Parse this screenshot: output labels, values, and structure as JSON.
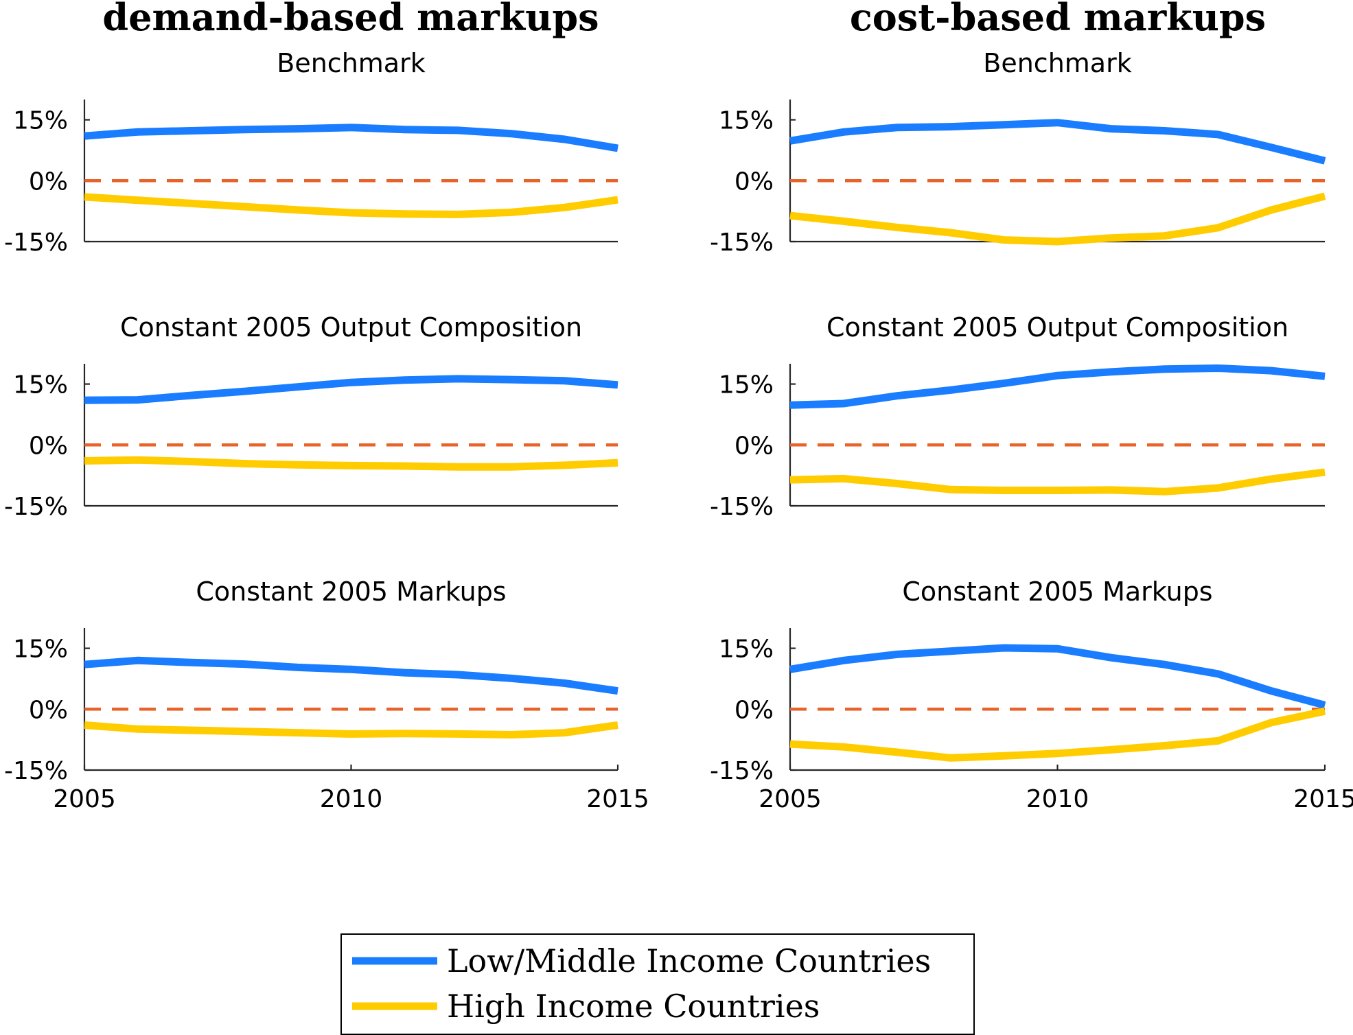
{
  "colors": {
    "low_middle": "#1a7cff",
    "high": "#ffcc00",
    "zero": "#e8632a"
  },
  "column_titles": [
    "demand-based markups",
    "cost-based markups"
  ],
  "legend": {
    "entries": [
      {
        "label": "Low/Middle Income Countries",
        "color": "#1a7cff"
      },
      {
        "label": "High Income Countries",
        "color": "#ffcc00"
      }
    ]
  },
  "chart_data": [
    {
      "type": "line",
      "column": "demand-based markups",
      "title": "Benchmark",
      "x": [
        2005,
        2006,
        2007,
        2008,
        2009,
        2010,
        2011,
        2012,
        2013,
        2014,
        2015
      ],
      "xlim": [
        2005,
        2015
      ],
      "xticks": [],
      "ylim": [
        -15,
        20
      ],
      "yticks": [
        15,
        0,
        -15
      ],
      "ytick_labels": [
        "15%",
        "0%",
        "-15%"
      ],
      "reference_line": 0,
      "series": [
        {
          "name": "Low/Middle Income Countries",
          "values": [
            11,
            12,
            12.3,
            12.6,
            12.8,
            13.1,
            12.6,
            12.4,
            11.6,
            10.2,
            8.0
          ]
        },
        {
          "name": "High Income Countries",
          "values": [
            -4,
            -4.8,
            -5.6,
            -6.4,
            -7.2,
            -7.9,
            -8.2,
            -8.3,
            -7.8,
            -6.6,
            -4.7
          ]
        }
      ]
    },
    {
      "type": "line",
      "column": "cost-based markups",
      "title": "Benchmark",
      "x": [
        2005,
        2006,
        2007,
        2008,
        2009,
        2010,
        2011,
        2012,
        2013,
        2014,
        2015
      ],
      "xlim": [
        2005,
        2015
      ],
      "xticks": [],
      "ylim": [
        -15,
        20
      ],
      "yticks": [
        15,
        0,
        -15
      ],
      "ytick_labels": [
        "15%",
        "0%",
        "-15%"
      ],
      "reference_line": 0,
      "series": [
        {
          "name": "Low/Middle Income Countries",
          "values": [
            9.8,
            12.0,
            13.1,
            13.3,
            13.8,
            14.3,
            12.8,
            12.3,
            11.4,
            8.2,
            4.9
          ]
        },
        {
          "name": "High Income Countries",
          "values": [
            -8.6,
            -10.0,
            -11.5,
            -12.8,
            -14.6,
            -15.0,
            -14.1,
            -13.6,
            -11.6,
            -7.2,
            -3.8
          ]
        }
      ]
    },
    {
      "type": "line",
      "column": "demand-based markups",
      "title": "Constant 2005 Output Composition",
      "x": [
        2005,
        2006,
        2007,
        2008,
        2009,
        2010,
        2011,
        2012,
        2013,
        2014,
        2015
      ],
      "xlim": [
        2005,
        2015
      ],
      "xticks": [],
      "ylim": [
        -15,
        20
      ],
      "yticks": [
        15,
        0,
        -15
      ],
      "ytick_labels": [
        "15%",
        "0%",
        "-15%"
      ],
      "reference_line": 0,
      "series": [
        {
          "name": "Low/Middle Income Countries",
          "values": [
            11.0,
            11.1,
            12.2,
            13.2,
            14.3,
            15.4,
            16.0,
            16.3,
            16.1,
            15.8,
            14.8
          ]
        },
        {
          "name": "High Income Countries",
          "values": [
            -3.9,
            -3.7,
            -4.1,
            -4.6,
            -4.9,
            -5.1,
            -5.2,
            -5.4,
            -5.4,
            -5.0,
            -4.4
          ]
        }
      ]
    },
    {
      "type": "line",
      "column": "cost-based markups",
      "title": "Constant 2005 Output Composition",
      "x": [
        2005,
        2006,
        2007,
        2008,
        2009,
        2010,
        2011,
        2012,
        2013,
        2014,
        2015
      ],
      "xlim": [
        2005,
        2015
      ],
      "xticks": [],
      "ylim": [
        -15,
        20
      ],
      "yticks": [
        15,
        0,
        -15
      ],
      "ytick_labels": [
        "15%",
        "0%",
        "-15%"
      ],
      "reference_line": 0,
      "series": [
        {
          "name": "Low/Middle Income Countries",
          "values": [
            9.8,
            10.2,
            12.1,
            13.5,
            15.2,
            17.1,
            18.0,
            18.7,
            18.9,
            18.3,
            16.9
          ]
        },
        {
          "name": "High Income Countries",
          "values": [
            -8.6,
            -8.3,
            -9.5,
            -11.0,
            -11.2,
            -11.2,
            -11.1,
            -11.5,
            -10.6,
            -8.4,
            -6.7
          ]
        }
      ]
    },
    {
      "type": "line",
      "column": "demand-based markups",
      "title": "Constant 2005 Markups",
      "x": [
        2005,
        2006,
        2007,
        2008,
        2009,
        2010,
        2011,
        2012,
        2013,
        2014,
        2015
      ],
      "xlim": [
        2005,
        2015
      ],
      "xticks": [
        2005,
        2010,
        2015
      ],
      "ylim": [
        -15,
        20
      ],
      "yticks": [
        15,
        0,
        -15
      ],
      "ytick_labels": [
        "15%",
        "0%",
        "-15%"
      ],
      "reference_line": 0,
      "series": [
        {
          "name": "Low/Middle Income Countries",
          "values": [
            11.0,
            12.0,
            11.5,
            11.1,
            10.3,
            9.8,
            9.0,
            8.5,
            7.6,
            6.4,
            4.5
          ]
        },
        {
          "name": "High Income Countries",
          "values": [
            -3.9,
            -4.9,
            -5.2,
            -5.5,
            -5.8,
            -6.1,
            -6.0,
            -6.1,
            -6.3,
            -5.8,
            -3.9
          ]
        }
      ]
    },
    {
      "type": "line",
      "column": "cost-based markups",
      "title": "Constant 2005 Markups",
      "x": [
        2005,
        2006,
        2007,
        2008,
        2009,
        2010,
        2011,
        2012,
        2013,
        2014,
        2015
      ],
      "xlim": [
        2005,
        2015
      ],
      "xticks": [
        2005,
        2010,
        2015
      ],
      "ylim": [
        -15,
        20
      ],
      "yticks": [
        15,
        0,
        -15
      ],
      "ytick_labels": [
        "15%",
        "0%",
        "-15%"
      ],
      "reference_line": 0,
      "series": [
        {
          "name": "Low/Middle Income Countries",
          "values": [
            9.8,
            12.0,
            13.5,
            14.3,
            15.1,
            14.9,
            12.7,
            11.0,
            8.7,
            4.5,
            1.0
          ]
        },
        {
          "name": "High Income Countries",
          "values": [
            -8.6,
            -9.3,
            -10.6,
            -12.0,
            -11.5,
            -10.9,
            -10.0,
            -9.0,
            -7.8,
            -3.3,
            -0.5
          ]
        }
      ]
    }
  ]
}
